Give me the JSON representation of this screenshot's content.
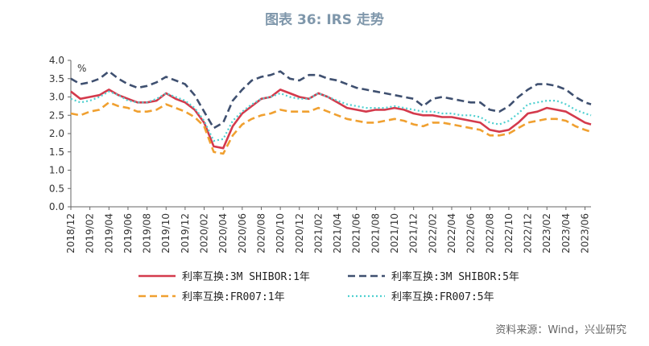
{
  "source": "资料来源：Wind，兴业研究",
  "chart_data": {
    "type": "line",
    "title": "图表 36: IRS 走势",
    "unit": "%",
    "ylim": [
      0,
      4
    ],
    "yticks": [
      "0.0",
      "0.5",
      "1.0",
      "1.5",
      "2.0",
      "2.5",
      "3.0",
      "3.5",
      "4.0"
    ],
    "xticks": [
      "2018/12",
      "2019/02",
      "2019/04",
      "2019/06",
      "2019/08",
      "2019/10",
      "2019/12",
      "2020/02",
      "2020/04",
      "2020/06",
      "2020/08",
      "2020/10",
      "2020/12",
      "2021/02",
      "2021/04",
      "2021/06",
      "2021/08",
      "2021/10",
      "2021/12",
      "2022/02",
      "2022/04",
      "2022/06",
      "2022/08",
      "2022/10",
      "2022/12",
      "2023/02",
      "2023/04",
      "2023/06"
    ],
    "x": [
      "2018-12-01",
      "2019-01-01",
      "2019-02-01",
      "2019-03-01",
      "2019-04-01",
      "2019-05-01",
      "2019-06-01",
      "2019-07-01",
      "2019-08-01",
      "2019-09-01",
      "2019-10-01",
      "2019-11-01",
      "2019-12-01",
      "2020-01-01",
      "2020-02-01",
      "2020-03-01",
      "2020-04-01",
      "2020-05-01",
      "2020-06-01",
      "2020-07-01",
      "2020-08-01",
      "2020-09-01",
      "2020-10-01",
      "2020-11-01",
      "2020-12-01",
      "2021-01-01",
      "2021-02-01",
      "2021-03-01",
      "2021-04-01",
      "2021-05-01",
      "2021-06-01",
      "2021-07-01",
      "2021-08-01",
      "2021-09-01",
      "2021-10-01",
      "2021-11-01",
      "2021-12-01",
      "2022-01-01",
      "2022-02-01",
      "2022-03-01",
      "2022-04-01",
      "2022-05-01",
      "2022-06-01",
      "2022-07-01",
      "2022-08-01",
      "2022-09-01",
      "2022-10-01",
      "2022-11-01",
      "2022-12-01",
      "2023-01-01",
      "2023-02-01",
      "2023-03-01",
      "2023-04-01",
      "2023-05-01",
      "2023-06-01",
      "2023-06-20"
    ],
    "series": [
      {
        "name": "利率互换:3M SHIBOR:1年",
        "color": "#d43a4c",
        "style": "solid",
        "values": [
          3.15,
          2.95,
          3.0,
          3.05,
          3.2,
          3.05,
          2.95,
          2.85,
          2.85,
          2.9,
          3.1,
          2.95,
          2.85,
          2.65,
          2.3,
          1.65,
          1.6,
          2.2,
          2.55,
          2.75,
          2.95,
          3.0,
          3.2,
          3.1,
          3.0,
          2.95,
          3.1,
          3.0,
          2.85,
          2.7,
          2.65,
          2.6,
          2.65,
          2.65,
          2.7,
          2.65,
          2.55,
          2.5,
          2.5,
          2.45,
          2.45,
          2.4,
          2.35,
          2.3,
          2.1,
          2.05,
          2.1,
          2.3,
          2.55,
          2.6,
          2.7,
          2.65,
          2.6,
          2.45,
          2.3,
          2.25
        ]
      },
      {
        "name": "利率互换:3M SHIBOR:5年",
        "color": "#3f5070",
        "style": "dashed",
        "values": [
          3.5,
          3.35,
          3.4,
          3.5,
          3.7,
          3.5,
          3.35,
          3.25,
          3.3,
          3.4,
          3.55,
          3.45,
          3.35,
          3.05,
          2.6,
          2.15,
          2.3,
          2.9,
          3.2,
          3.45,
          3.55,
          3.6,
          3.7,
          3.5,
          3.45,
          3.6,
          3.6,
          3.5,
          3.45,
          3.35,
          3.25,
          3.2,
          3.15,
          3.1,
          3.05,
          3.0,
          2.95,
          2.75,
          2.95,
          3.0,
          2.95,
          2.9,
          2.85,
          2.85,
          2.65,
          2.6,
          2.75,
          3.0,
          3.2,
          3.35,
          3.35,
          3.3,
          3.2,
          3.0,
          2.85,
          2.8
        ]
      },
      {
        "name": "利率互换:FR007:1年",
        "color": "#f0a030",
        "style": "dashed",
        "values": [
          2.55,
          2.5,
          2.6,
          2.65,
          2.85,
          2.75,
          2.7,
          2.6,
          2.6,
          2.65,
          2.8,
          2.7,
          2.6,
          2.45,
          2.2,
          1.5,
          1.45,
          1.95,
          2.25,
          2.4,
          2.5,
          2.55,
          2.65,
          2.6,
          2.6,
          2.6,
          2.7,
          2.6,
          2.5,
          2.4,
          2.35,
          2.3,
          2.3,
          2.35,
          2.4,
          2.35,
          2.25,
          2.2,
          2.3,
          2.3,
          2.25,
          2.2,
          2.15,
          2.1,
          1.95,
          1.95,
          2.0,
          2.15,
          2.3,
          2.35,
          2.4,
          2.4,
          2.35,
          2.2,
          2.1,
          2.05
        ]
      },
      {
        "name": "利率互换:FR007:5年",
        "color": "#4fd0d0",
        "style": "dotted",
        "values": [
          2.95,
          2.85,
          2.9,
          3.0,
          3.15,
          3.05,
          2.9,
          2.85,
          2.85,
          2.95,
          3.1,
          3.0,
          2.9,
          2.7,
          2.35,
          1.8,
          1.85,
          2.35,
          2.6,
          2.8,
          2.95,
          3.0,
          3.1,
          3.0,
          2.95,
          2.95,
          3.1,
          3.0,
          2.9,
          2.8,
          2.75,
          2.7,
          2.7,
          2.7,
          2.75,
          2.7,
          2.65,
          2.6,
          2.6,
          2.55,
          2.55,
          2.5,
          2.5,
          2.45,
          2.3,
          2.25,
          2.35,
          2.55,
          2.8,
          2.85,
          2.9,
          2.9,
          2.8,
          2.65,
          2.55,
          2.5
        ]
      }
    ],
    "legend_position": "bottom",
    "grid": false
  }
}
